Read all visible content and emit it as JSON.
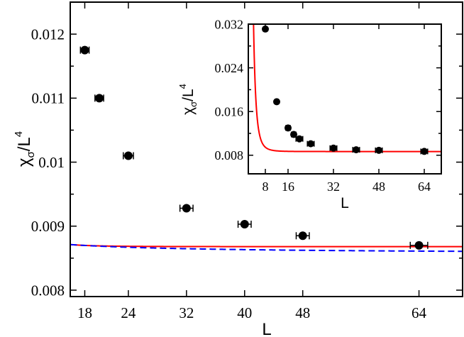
{
  "chart_data": [
    {
      "type": "scatter",
      "panel": "main",
      "xlabel": "L",
      "ylabel": {
        "base": "χ",
        "sub": "σ",
        "mid": "/L",
        "sup": "4"
      },
      "xlim": [
        16,
        70
      ],
      "ylim": [
        0.0079,
        0.0125
      ],
      "xticks": [
        18,
        24,
        32,
        40,
        48,
        64
      ],
      "yticks": [
        0.008,
        0.009,
        0.01,
        0.011,
        0.012
      ],
      "ytick_labels": [
        "0.008",
        "0.009",
        "0.01",
        "0.011",
        "0.012"
      ],
      "grid": false,
      "series": [
        {
          "kind": "points",
          "color": "#000000",
          "x": [
            18,
            20,
            24,
            32,
            40,
            48,
            64
          ],
          "y": [
            0.01175,
            0.011,
            0.0101,
            0.00928,
            0.00903,
            0.00885,
            0.0087
          ],
          "xerr": [
            0.6,
            0.6,
            0.7,
            0.9,
            0.9,
            0.9,
            1.2
          ]
        },
        {
          "kind": "curve",
          "style": "solid",
          "color": "#ff0000",
          "model": {
            "a": 0.00868,
            "b": 11.3,
            "p": 4.6
          }
        },
        {
          "kind": "curve",
          "style": "dashed",
          "color": "#0000ff",
          "model": {
            "a": 0.00856,
            "b": 0.0014,
            "p": 0.8
          }
        }
      ]
    },
    {
      "type": "scatter",
      "panel": "inset",
      "xlabel": "L",
      "ylabel": {
        "base": "χ",
        "sub": "σ",
        "mid": "/L",
        "sup": "4"
      },
      "xlim": [
        2,
        70
      ],
      "ylim": [
        0.0046,
        0.032
      ],
      "xticks": [
        8,
        16,
        32,
        48,
        64
      ],
      "yticks": [
        0.008,
        0.016,
        0.024,
        0.032
      ],
      "ytick_labels": [
        "0.008",
        "0.016",
        "0.024",
        "0.032"
      ],
      "grid": false,
      "series": [
        {
          "kind": "points",
          "color": "#000000",
          "x": [
            8,
            12,
            16,
            18,
            20,
            24,
            32,
            40,
            48,
            64
          ],
          "y": [
            0.0311,
            0.0178,
            0.013,
            0.0118,
            0.011,
            0.0101,
            0.0093,
            0.009,
            0.0089,
            0.0087
          ],
          "xerr": [
            0.6,
            0.6,
            0.8,
            0.8,
            1.2,
            1.2,
            1.2,
            1.2,
            1.2,
            1.2
          ]
        },
        {
          "kind": "curve",
          "style": "solid",
          "color": "#ff0000",
          "model": {
            "a": 0.00868,
            "b": 11.3,
            "p": 4.6
          }
        }
      ]
    }
  ]
}
